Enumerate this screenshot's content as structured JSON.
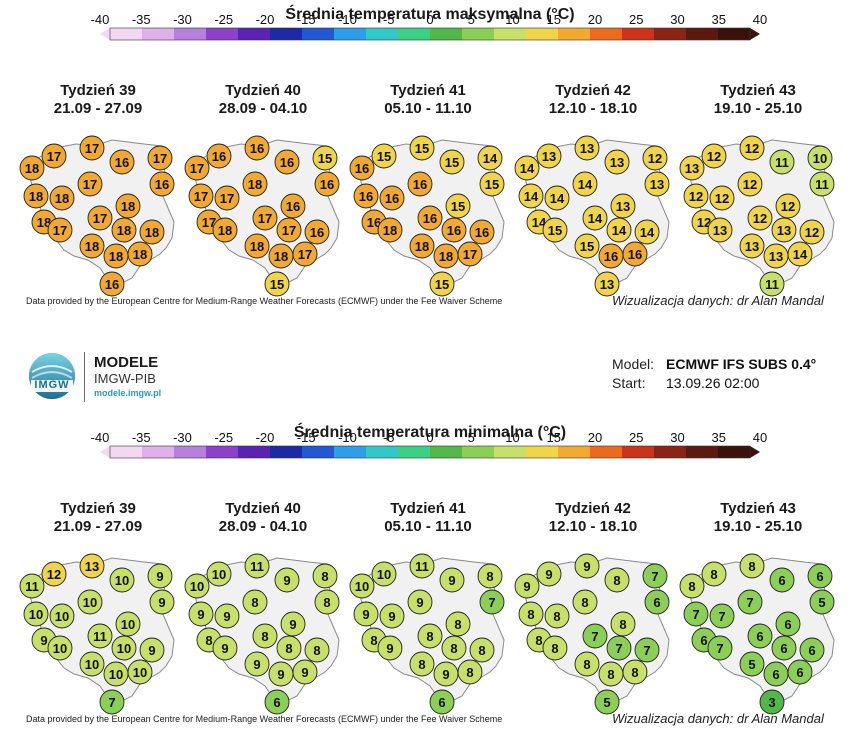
{
  "colors": {
    "colorbar": [
      "#f3d8f2",
      "#dfb1ea",
      "#b77fde",
      "#8b42c9",
      "#5a23b3",
      "#1d2aa6",
      "#2258d1",
      "#2d9ee8",
      "#33c8c8",
      "#3ccf86",
      "#52b848",
      "#8bcf57",
      "#c6e06a",
      "#f0d449",
      "#f2a931",
      "#ea6a1e",
      "#c9341a",
      "#8a2414",
      "#5a1a10",
      "#3a120c"
    ]
  },
  "top": {
    "title": "Średnia temperatura maksymalna (°C)",
    "colorbar_ticks": [
      "-40",
      "-35",
      "-30",
      "-25",
      "-20",
      "-15",
      "-10",
      "-5",
      "0",
      "5",
      "10",
      "15",
      "20",
      "25",
      "30",
      "35",
      "40"
    ],
    "credit": "Data provided by the European Centre for Medium-Range Weather Forecasts (ECMWF) under the Fee Waiver Scheme",
    "viz": "Wizualizacja danych: dr Alan Mandal",
    "weeks": [
      {
        "label": "Tydzień 39",
        "dates": "21.09 - 27.09",
        "values": [
          18,
          17,
          17,
          16,
          17,
          16,
          18,
          18,
          17,
          18,
          18,
          17,
          17,
          18,
          18,
          18,
          18,
          18,
          16
        ]
      },
      {
        "label": "Tydzień 40",
        "dates": "28.09 - 04.10",
        "values": [
          17,
          16,
          16,
          16,
          15,
          16,
          17,
          17,
          18,
          17,
          16,
          17,
          18,
          17,
          16,
          18,
          17,
          18,
          15
        ]
      },
      {
        "label": "Tydzień 41",
        "dates": "05.10 - 11.10",
        "values": [
          16,
          15,
          15,
          15,
          14,
          15,
          16,
          16,
          16,
          16,
          15,
          16,
          18,
          16,
          16,
          18,
          17,
          18,
          15
        ]
      },
      {
        "label": "Tydzień 42",
        "dates": "12.10 - 18.10",
        "values": [
          14,
          13,
          13,
          13,
          12,
          13,
          14,
          14,
          14,
          14,
          13,
          14,
          15,
          14,
          14,
          15,
          16,
          16,
          13
        ]
      },
      {
        "label": "Tydzień 43",
        "dates": "19.10 - 25.10",
        "values": [
          13,
          12,
          12,
          11,
          10,
          11,
          12,
          12,
          12,
          12,
          12,
          12,
          13,
          13,
          12,
          13,
          14,
          13,
          11
        ]
      }
    ]
  },
  "logo": {
    "name": "MODELE",
    "org": "IMGW-PIB",
    "url": "modele.imgw.pl",
    "mark": "IMGW"
  },
  "model": {
    "model_label": "Model:",
    "model_value": "ECMWF IFS SUBS 0.4°",
    "start_label": "Start:",
    "start_value": "13.09.26 02:00"
  },
  "bottom": {
    "title": "Średnia temperatura minimalna (°C)",
    "colorbar_ticks": [
      "-40",
      "-35",
      "-30",
      "-25",
      "-20",
      "-15",
      "-10",
      "-5",
      "0",
      "5",
      "10",
      "15",
      "20",
      "25",
      "30",
      "35",
      "40"
    ],
    "credit": "Data provided by the European Centre for Medium-Range Weather Forecasts (ECMWF) under the Fee Waiver Scheme",
    "viz": "Wizualizacja danych: dr Alan Mandal",
    "weeks": [
      {
        "label": "Tydzień 39",
        "dates": "21.09 - 27.09",
        "values": [
          11,
          12,
          13,
          10,
          9,
          9,
          10,
          10,
          10,
          9,
          10,
          11,
          10,
          10,
          9,
          10,
          10,
          10,
          7
        ]
      },
      {
        "label": "Tydzień 40",
        "dates": "28.09 - 04.10",
        "values": [
          10,
          10,
          11,
          9,
          8,
          8,
          9,
          9,
          8,
          8,
          9,
          8,
          9,
          8,
          8,
          9,
          9,
          9,
          6
        ]
      },
      {
        "label": "Tydzień 41",
        "dates": "05.10 - 11.10",
        "values": [
          10,
          10,
          11,
          9,
          8,
          7,
          9,
          9,
          9,
          8,
          8,
          8,
          9,
          8,
          8,
          8,
          8,
          9,
          6
        ]
      },
      {
        "label": "Tydzień 42",
        "dates": "12.10 - 18.10",
        "values": [
          9,
          9,
          9,
          8,
          7,
          6,
          8,
          8,
          8,
          8,
          8,
          7,
          8,
          7,
          7,
          8,
          8,
          8,
          5
        ]
      },
      {
        "label": "Tydzień 43",
        "dates": "19.10 - 25.10",
        "values": [
          8,
          8,
          8,
          6,
          6,
          5,
          7,
          7,
          7,
          6,
          6,
          6,
          7,
          6,
          6,
          5,
          6,
          6,
          3
        ]
      }
    ]
  }
}
